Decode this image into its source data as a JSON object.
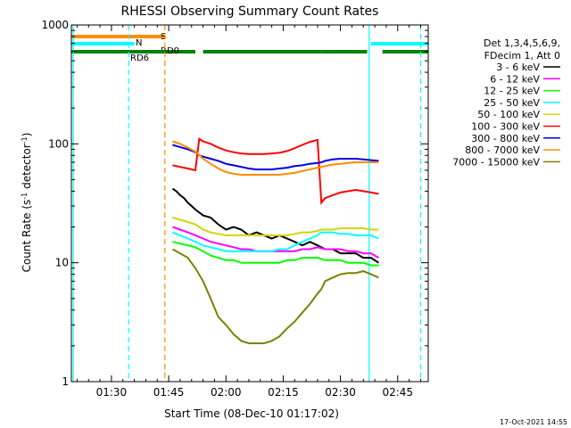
{
  "chart_data": {
    "type": "line",
    "title": "RHESSI Observing Summary Count Rates",
    "xlabel": "Start Time (08-Dec-10 01:17:02)",
    "ylabel_main": "Count Rate (s",
    "ylabel_sup1": "-1",
    "ylabel_mid": " detector",
    "ylabel_sup2": "-1",
    "ylabel_end": ")",
    "yscale": "log",
    "ylim": [
      1,
      1000
    ],
    "xlim_minutes": [
      79.5,
      173
    ],
    "x_ticks": [
      {
        "t": 90,
        "label": "01:30"
      },
      {
        "t": 105,
        "label": "01:45"
      },
      {
        "t": 120,
        "label": "02:00"
      },
      {
        "t": 135,
        "label": "02:15"
      },
      {
        "t": 150,
        "label": "02:30"
      },
      {
        "t": 165,
        "label": "02:45"
      }
    ],
    "y_ticks": [
      {
        "v": 1,
        "label": "1"
      },
      {
        "v": 10,
        "label": "10"
      },
      {
        "v": 100,
        "label": "100"
      },
      {
        "v": 1000,
        "label": "1000"
      }
    ],
    "legend": {
      "header1": "Det 1,3,4,5,6,9,",
      "header2": "FDecim 1, Att 0",
      "entries": [
        {
          "label": "3 - 6 keV",
          "color": "#000000"
        },
        {
          "label": "6 - 12 keV",
          "color": "#ff00ff"
        },
        {
          "label": "12 - 25 keV",
          "color": "#00ff00"
        },
        {
          "label": "25 - 50 keV",
          "color": "#00ffff"
        },
        {
          "label": "50 - 100 keV",
          "color": "#d4d400"
        },
        {
          "label": "100 - 300 keV",
          "color": "#ff0000"
        },
        {
          "label": "300 - 800 keV",
          "color": "#0000dd"
        },
        {
          "label": "800 - 7000 keV",
          "color": "#ff8c00"
        },
        {
          "label": "7000 - 15000 keV",
          "color": "#808000"
        }
      ]
    },
    "flags": [
      {
        "label": "S",
        "color": "#ff8c00",
        "segments": [
          [
            79.5,
            104
          ]
        ]
      },
      {
        "label": "N",
        "color": "#00ffff",
        "segments": [
          [
            79.5,
            96
          ],
          [
            158,
            173
          ]
        ]
      },
      {
        "label": "RD0",
        "color": "#008000",
        "segments": [
          [
            104,
            112
          ],
          [
            114,
            145
          ],
          [
            145,
            157
          ],
          [
            161,
            173
          ]
        ]
      },
      {
        "label": "RD6",
        "color": "#008000",
        "segments": [
          [
            79.5,
            104
          ]
        ]
      }
    ],
    "vlines": [
      {
        "t": 80,
        "color": "#00ffff",
        "style": "solid"
      },
      {
        "t": 94.5,
        "color": "#00ffff",
        "style": "dashed"
      },
      {
        "t": 104,
        "color": "#ff8c00",
        "style": "dashed"
      },
      {
        "t": 157.5,
        "color": "#00ffff",
        "style": "solid"
      },
      {
        "t": 171,
        "color": "#00ffff",
        "style": "dashed"
      }
    ],
    "series": [
      {
        "name": "3 - 6 keV",
        "color": "#000000",
        "x": [
          106,
          107,
          108,
          109,
          110,
          111,
          112,
          114,
          116,
          118,
          120,
          122,
          124,
          126,
          128,
          130,
          132,
          134,
          136,
          138,
          140,
          142,
          144,
          146,
          148,
          150,
          152,
          154,
          156,
          158,
          160
        ],
        "y": [
          42,
          40,
          37,
          35,
          32,
          30,
          28,
          25,
          24,
          21,
          19,
          20,
          19,
          17,
          18,
          17,
          16,
          17,
          16,
          15,
          14,
          15,
          14,
          13,
          13,
          12,
          12,
          12,
          11,
          11,
          10
        ]
      },
      {
        "name": "6 - 12 keV",
        "color": "#ff00ff",
        "x": [
          106,
          108,
          110,
          112,
          114,
          116,
          118,
          120,
          122,
          124,
          126,
          128,
          130,
          132,
          134,
          136,
          138,
          140,
          142,
          144,
          146,
          148,
          150,
          152,
          154,
          156,
          158,
          160
        ],
        "y": [
          20,
          19,
          18,
          17,
          16,
          15,
          14.5,
          14,
          13.5,
          13,
          13,
          12.5,
          12.5,
          12.5,
          12.5,
          12.5,
          12.5,
          13,
          13,
          13.5,
          13,
          13,
          13,
          12.5,
          12.5,
          12,
          12,
          11
        ]
      },
      {
        "name": "12 - 25 keV",
        "color": "#00ff00",
        "x": [
          106,
          108,
          110,
          112,
          114,
          116,
          118,
          120,
          122,
          124,
          126,
          128,
          130,
          132,
          134,
          136,
          138,
          140,
          142,
          144,
          146,
          148,
          150,
          152,
          154,
          156,
          158,
          160
        ],
        "y": [
          15,
          14.5,
          14,
          13.5,
          12.5,
          11.5,
          11,
          10.5,
          10.5,
          10,
          10,
          10,
          10,
          10,
          10,
          10.5,
          10.5,
          11,
          11,
          11,
          10.5,
          10.5,
          10.5,
          10,
          10,
          10,
          9.5,
          9.5
        ]
      },
      {
        "name": "25 - 50 keV",
        "color": "#00ffff",
        "x": [
          106,
          108,
          110,
          112,
          114,
          116,
          118,
          120,
          122,
          124,
          126,
          128,
          130,
          132,
          134,
          136,
          138,
          140,
          142,
          144,
          145,
          146,
          148,
          150,
          152,
          154,
          156,
          158,
          160
        ],
        "y": [
          18,
          17,
          16,
          15,
          14,
          13.5,
          13,
          12.5,
          12.5,
          12.5,
          12.5,
          12.5,
          12.5,
          12.5,
          13,
          13,
          14,
          15,
          16,
          17,
          18,
          18,
          18,
          17.5,
          17.5,
          17,
          17,
          17,
          16
        ]
      },
      {
        "name": "50 - 100 keV",
        "color": "#d4d400",
        "x": [
          106,
          108,
          110,
          112,
          113,
          114,
          116,
          118,
          120,
          122,
          124,
          126,
          128,
          130,
          132,
          134,
          136,
          138,
          140,
          142,
          144,
          145,
          146,
          148,
          150,
          152,
          154,
          156,
          158,
          160
        ],
        "y": [
          24,
          23,
          22,
          21,
          20,
          19,
          18,
          17.5,
          17,
          17,
          17,
          17,
          17,
          17,
          17,
          17,
          17,
          17.5,
          18,
          18,
          18.5,
          19,
          19,
          19,
          19.5,
          19.5,
          19.5,
          19.5,
          19,
          19
        ]
      },
      {
        "name": "100 - 300 keV",
        "color": "#ff0000",
        "x": [
          106,
          108,
          110,
          112,
          113,
          114,
          116,
          118,
          120,
          122,
          124,
          126,
          128,
          130,
          132,
          134,
          136,
          138,
          140,
          142,
          144,
          145,
          146,
          148,
          150,
          152,
          154,
          156,
          158,
          160
        ],
        "y": [
          66,
          64,
          62,
          60,
          110,
          105,
          100,
          93,
          88,
          85,
          83,
          82,
          82,
          82,
          83,
          84,
          87,
          92,
          98,
          104,
          108,
          32,
          35,
          37,
          39,
          40,
          41,
          40,
          39,
          38
        ]
      },
      {
        "name": "300 - 800 keV",
        "color": "#0000dd",
        "x": [
          106,
          108,
          110,
          112,
          113,
          114,
          116,
          118,
          120,
          122,
          124,
          126,
          128,
          130,
          132,
          134,
          136,
          138,
          140,
          142,
          144,
          145,
          146,
          148,
          150,
          152,
          154,
          156,
          158,
          160
        ],
        "y": [
          98,
          94,
          90,
          85,
          80,
          78,
          75,
          72,
          68,
          66,
          64,
          62,
          61,
          61,
          61,
          62,
          63,
          65,
          66,
          68,
          69,
          70,
          72,
          74,
          75,
          75,
          75,
          74,
          73,
          72
        ]
      },
      {
        "name": "800 - 7000 keV",
        "color": "#ff8c00",
        "x": [
          106,
          108,
          110,
          112,
          114,
          116,
          118,
          120,
          122,
          124,
          126,
          128,
          130,
          132,
          134,
          136,
          138,
          140,
          142,
          144,
          146,
          148,
          150,
          152,
          154,
          156,
          158,
          160
        ],
        "y": [
          105,
          100,
          93,
          86,
          75,
          68,
          62,
          58,
          56,
          55,
          55,
          55,
          55,
          55,
          55,
          56,
          57,
          59,
          61,
          63,
          65,
          67,
          68,
          69,
          70,
          70,
          70,
          70
        ]
      },
      {
        "name": "7000 - 15000 keV",
        "color": "#808000",
        "x": [
          106,
          108,
          110,
          112,
          114,
          116,
          118,
          120,
          122,
          124,
          126,
          128,
          130,
          132,
          134,
          136,
          138,
          140,
          142,
          144,
          145,
          146,
          148,
          150,
          152,
          154,
          156,
          158,
          160
        ],
        "y": [
          13,
          12,
          11,
          9,
          7,
          5,
          3.5,
          3,
          2.5,
          2.2,
          2.1,
          2.1,
          2.1,
          2.2,
          2.4,
          2.8,
          3.2,
          3.8,
          4.5,
          5.5,
          6,
          7,
          7.5,
          8,
          8.2,
          8.2,
          8.5,
          8,
          7.5
        ]
      }
    ],
    "grid": false,
    "legend_position": "right"
  },
  "footer": {
    "timestamp": "17-Oct-2021 14:55"
  }
}
